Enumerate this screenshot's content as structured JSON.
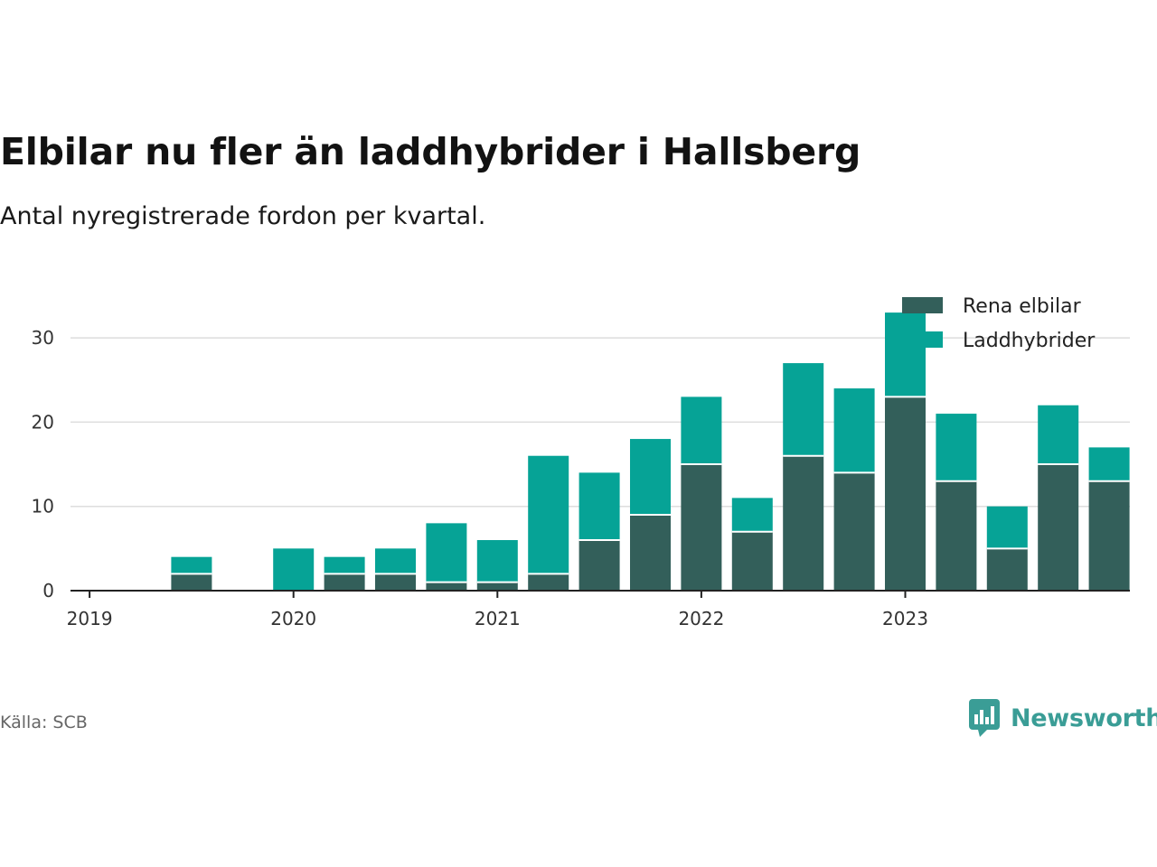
{
  "title": "Elbilar nu fler än laddhybrider i Hallsberg",
  "subtitle": "Antal nyregistrerade fordon per kvartal.",
  "source": "Källa: SCB",
  "logo": {
    "name": "Newsworthy",
    "icon": "newsworthy-logo-icon"
  },
  "colors": {
    "rena_elbilar": "#335f5a",
    "laddhybrider": "#06a396",
    "axis": "#222222",
    "grid": "#dddddd"
  },
  "chart_data": {
    "type": "bar",
    "stacked": true,
    "categories": [
      "2019 Q1",
      "2019 Q2",
      "2019 Q3",
      "2019 Q4",
      "2020 Q1",
      "2020 Q2",
      "2020 Q3",
      "2020 Q4",
      "2021 Q1",
      "2021 Q2",
      "2021 Q3",
      "2021 Q4",
      "2022 Q1",
      "2022 Q2",
      "2022 Q3",
      "2022 Q4",
      "2023 Q1",
      "2023 Q2",
      "2023 Q3",
      "2023 Q4"
    ],
    "series": [
      {
        "name": "Rena elbilar",
        "values": [
          0,
          2,
          0,
          0,
          2,
          2,
          1,
          1,
          2,
          6,
          9,
          15,
          7,
          16,
          14,
          23,
          13,
          5,
          15,
          13
        ]
      },
      {
        "name": "Laddhybrider",
        "values": [
          0,
          2,
          0,
          5,
          2,
          3,
          7,
          5,
          14,
          8,
          9,
          8,
          4,
          11,
          10,
          10,
          8,
          5,
          7,
          4
        ]
      }
    ],
    "x_ticks": [
      "2019",
      "2020",
      "2021",
      "2022",
      "2023"
    ],
    "y_ticks": [
      0,
      10,
      20,
      30
    ],
    "ylim": [
      0,
      35
    ],
    "grid": true,
    "legend": "top-right",
    "xlabel": "",
    "ylabel": ""
  }
}
